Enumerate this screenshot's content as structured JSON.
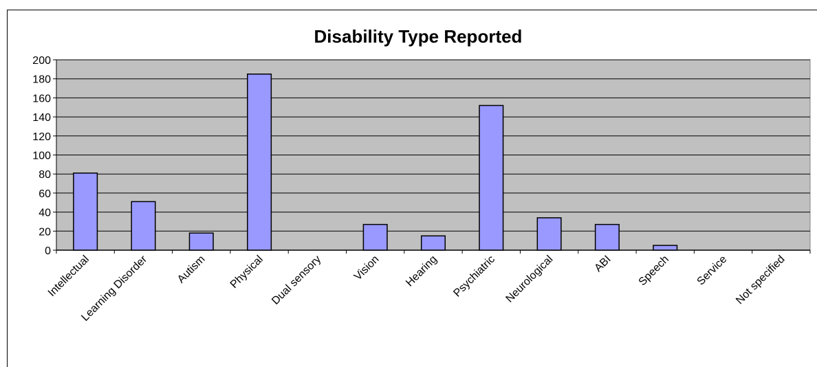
{
  "chart_data": {
    "type": "bar",
    "title": "Disability Type Reported",
    "xlabel": "",
    "ylabel": "",
    "categories": [
      "Intellectual",
      "Learning Disorder",
      "Autism",
      "Physical",
      "Dual sensory",
      "Vision",
      "Hearing",
      "Psychiatric",
      "Neurological",
      "ABI",
      "Speech",
      "Service",
      "Not specified"
    ],
    "values": [
      81,
      51,
      18,
      185,
      0,
      27,
      15,
      152,
      34,
      27,
      5,
      0,
      0
    ],
    "ylim": [
      0,
      200
    ],
    "yticks": [
      "0",
      "20",
      "40",
      "60",
      "80",
      "100",
      "120",
      "140",
      "160",
      "180",
      "200"
    ],
    "grid": true,
    "legend": "none",
    "colors": {
      "bar": "#9999ff",
      "plot_background": "#c0c0c0",
      "gridline": "#000000"
    }
  }
}
